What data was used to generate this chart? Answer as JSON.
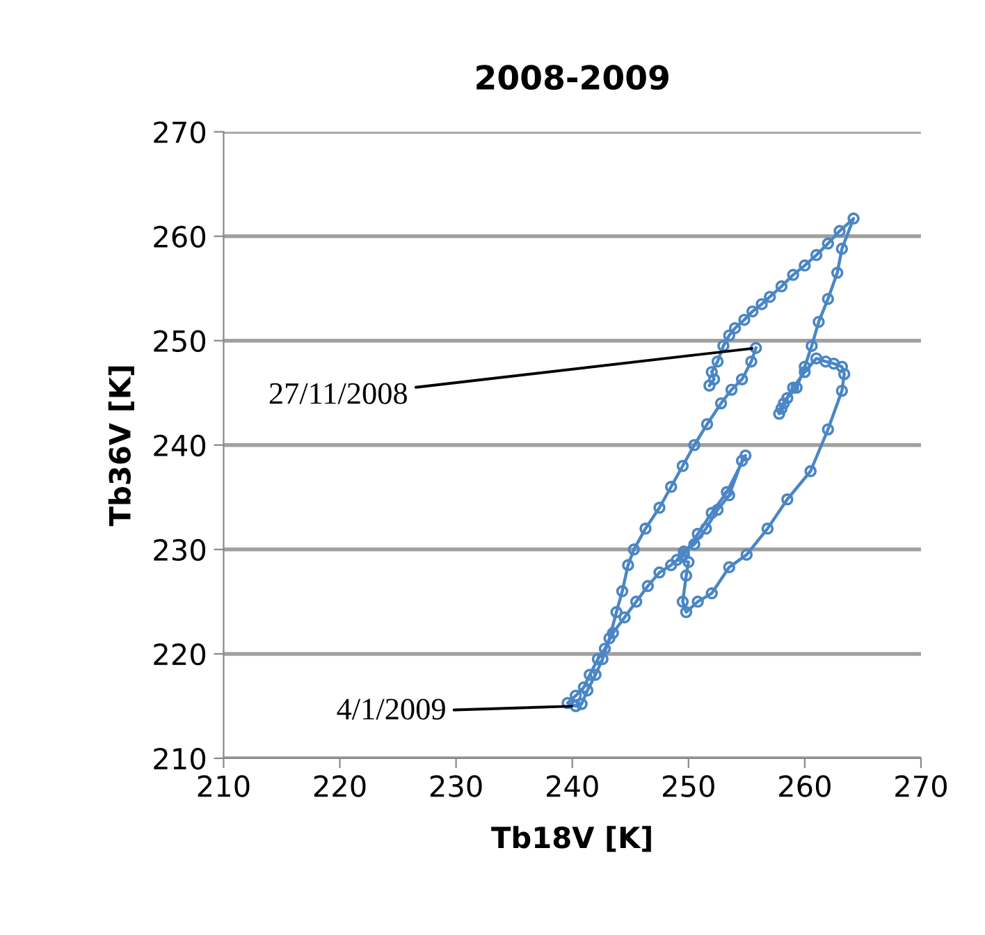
{
  "chart_data": {
    "type": "line",
    "title": "2008-2009",
    "xlabel": "Tb18V [K]",
    "ylabel": "Tb36V [K]",
    "xlim": [
      210,
      270
    ],
    "xticks": [
      210,
      220,
      230,
      240,
      250,
      260,
      270
    ],
    "ylim": [
      210,
      270
    ],
    "yticks": [
      210,
      220,
      230,
      240,
      250,
      260,
      270
    ],
    "grid": "y",
    "marker": "circle",
    "line_style": "solid",
    "annotations": [
      {
        "text": "27/11/2008",
        "x": 255.8,
        "y": 249.3
      },
      {
        "text": "4/1/2009",
        "x": 240.3,
        "y": 215.0
      }
    ],
    "series": [
      {
        "color": "#4a86c5",
        "x": [
          251.8,
          252.2,
          252.0,
          252.5,
          253.0,
          253.5,
          254.0,
          254.8,
          255.5,
          256.3,
          257.0,
          258.0,
          259.0,
          260.0,
          261.0,
          262.0,
          263.0,
          264.2,
          263.2,
          262.8,
          262.0,
          261.2,
          260.6,
          260.0,
          259.3,
          258.5,
          258.0,
          257.8,
          258.2,
          259.0,
          260.0,
          261.0,
          261.8,
          262.5,
          263.2,
          263.4,
          263.2,
          262.0,
          260.5,
          258.5,
          256.8,
          255.0,
          253.5,
          252.0,
          250.8,
          249.8,
          249.5,
          249.8,
          250.0,
          249.0,
          249.6,
          250.5,
          251.5,
          252.5,
          253.5,
          254.6,
          254.9,
          253.3,
          252.0,
          250.8,
          249.6,
          248.5,
          247.5,
          246.5,
          245.5,
          244.5,
          243.5,
          242.8,
          242.2,
          241.5,
          241.0,
          240.3,
          239.6,
          240.3,
          240.8,
          241.3,
          242.0,
          242.6,
          243.2,
          243.8,
          244.3,
          244.8,
          245.3,
          246.3,
          247.5,
          248.5,
          249.5,
          250.5,
          251.6,
          252.8,
          253.7,
          254.6,
          255.4,
          255.8
        ],
        "values": [
          245.7,
          246.3,
          247.0,
          248.0,
          249.5,
          250.5,
          251.2,
          252.0,
          252.8,
          253.5,
          254.2,
          255.2,
          256.3,
          257.2,
          258.2,
          259.3,
          260.5,
          261.7,
          258.8,
          256.5,
          254.0,
          251.8,
          249.5,
          247.5,
          245.5,
          244.5,
          243.5,
          243.0,
          244.0,
          245.5,
          247.0,
          248.3,
          248.0,
          247.8,
          247.5,
          246.8,
          245.2,
          241.5,
          237.5,
          234.8,
          232.0,
          229.5,
          228.3,
          225.8,
          225.0,
          224.0,
          225.0,
          227.5,
          228.8,
          229.0,
          229.8,
          230.5,
          232.0,
          233.8,
          235.2,
          238.5,
          239.0,
          235.5,
          233.5,
          231.5,
          229.5,
          228.5,
          227.8,
          226.5,
          225.0,
          223.5,
          222.0,
          220.5,
          219.5,
          218.0,
          216.8,
          216.0,
          215.3,
          215.0,
          215.2,
          216.5,
          218.0,
          219.5,
          221.5,
          224.0,
          226.0,
          228.5,
          230.0,
          232.0,
          234.0,
          236.0,
          238.0,
          240.0,
          242.0,
          244.0,
          245.3,
          246.3,
          248.0,
          249.3
        ]
      }
    ]
  }
}
